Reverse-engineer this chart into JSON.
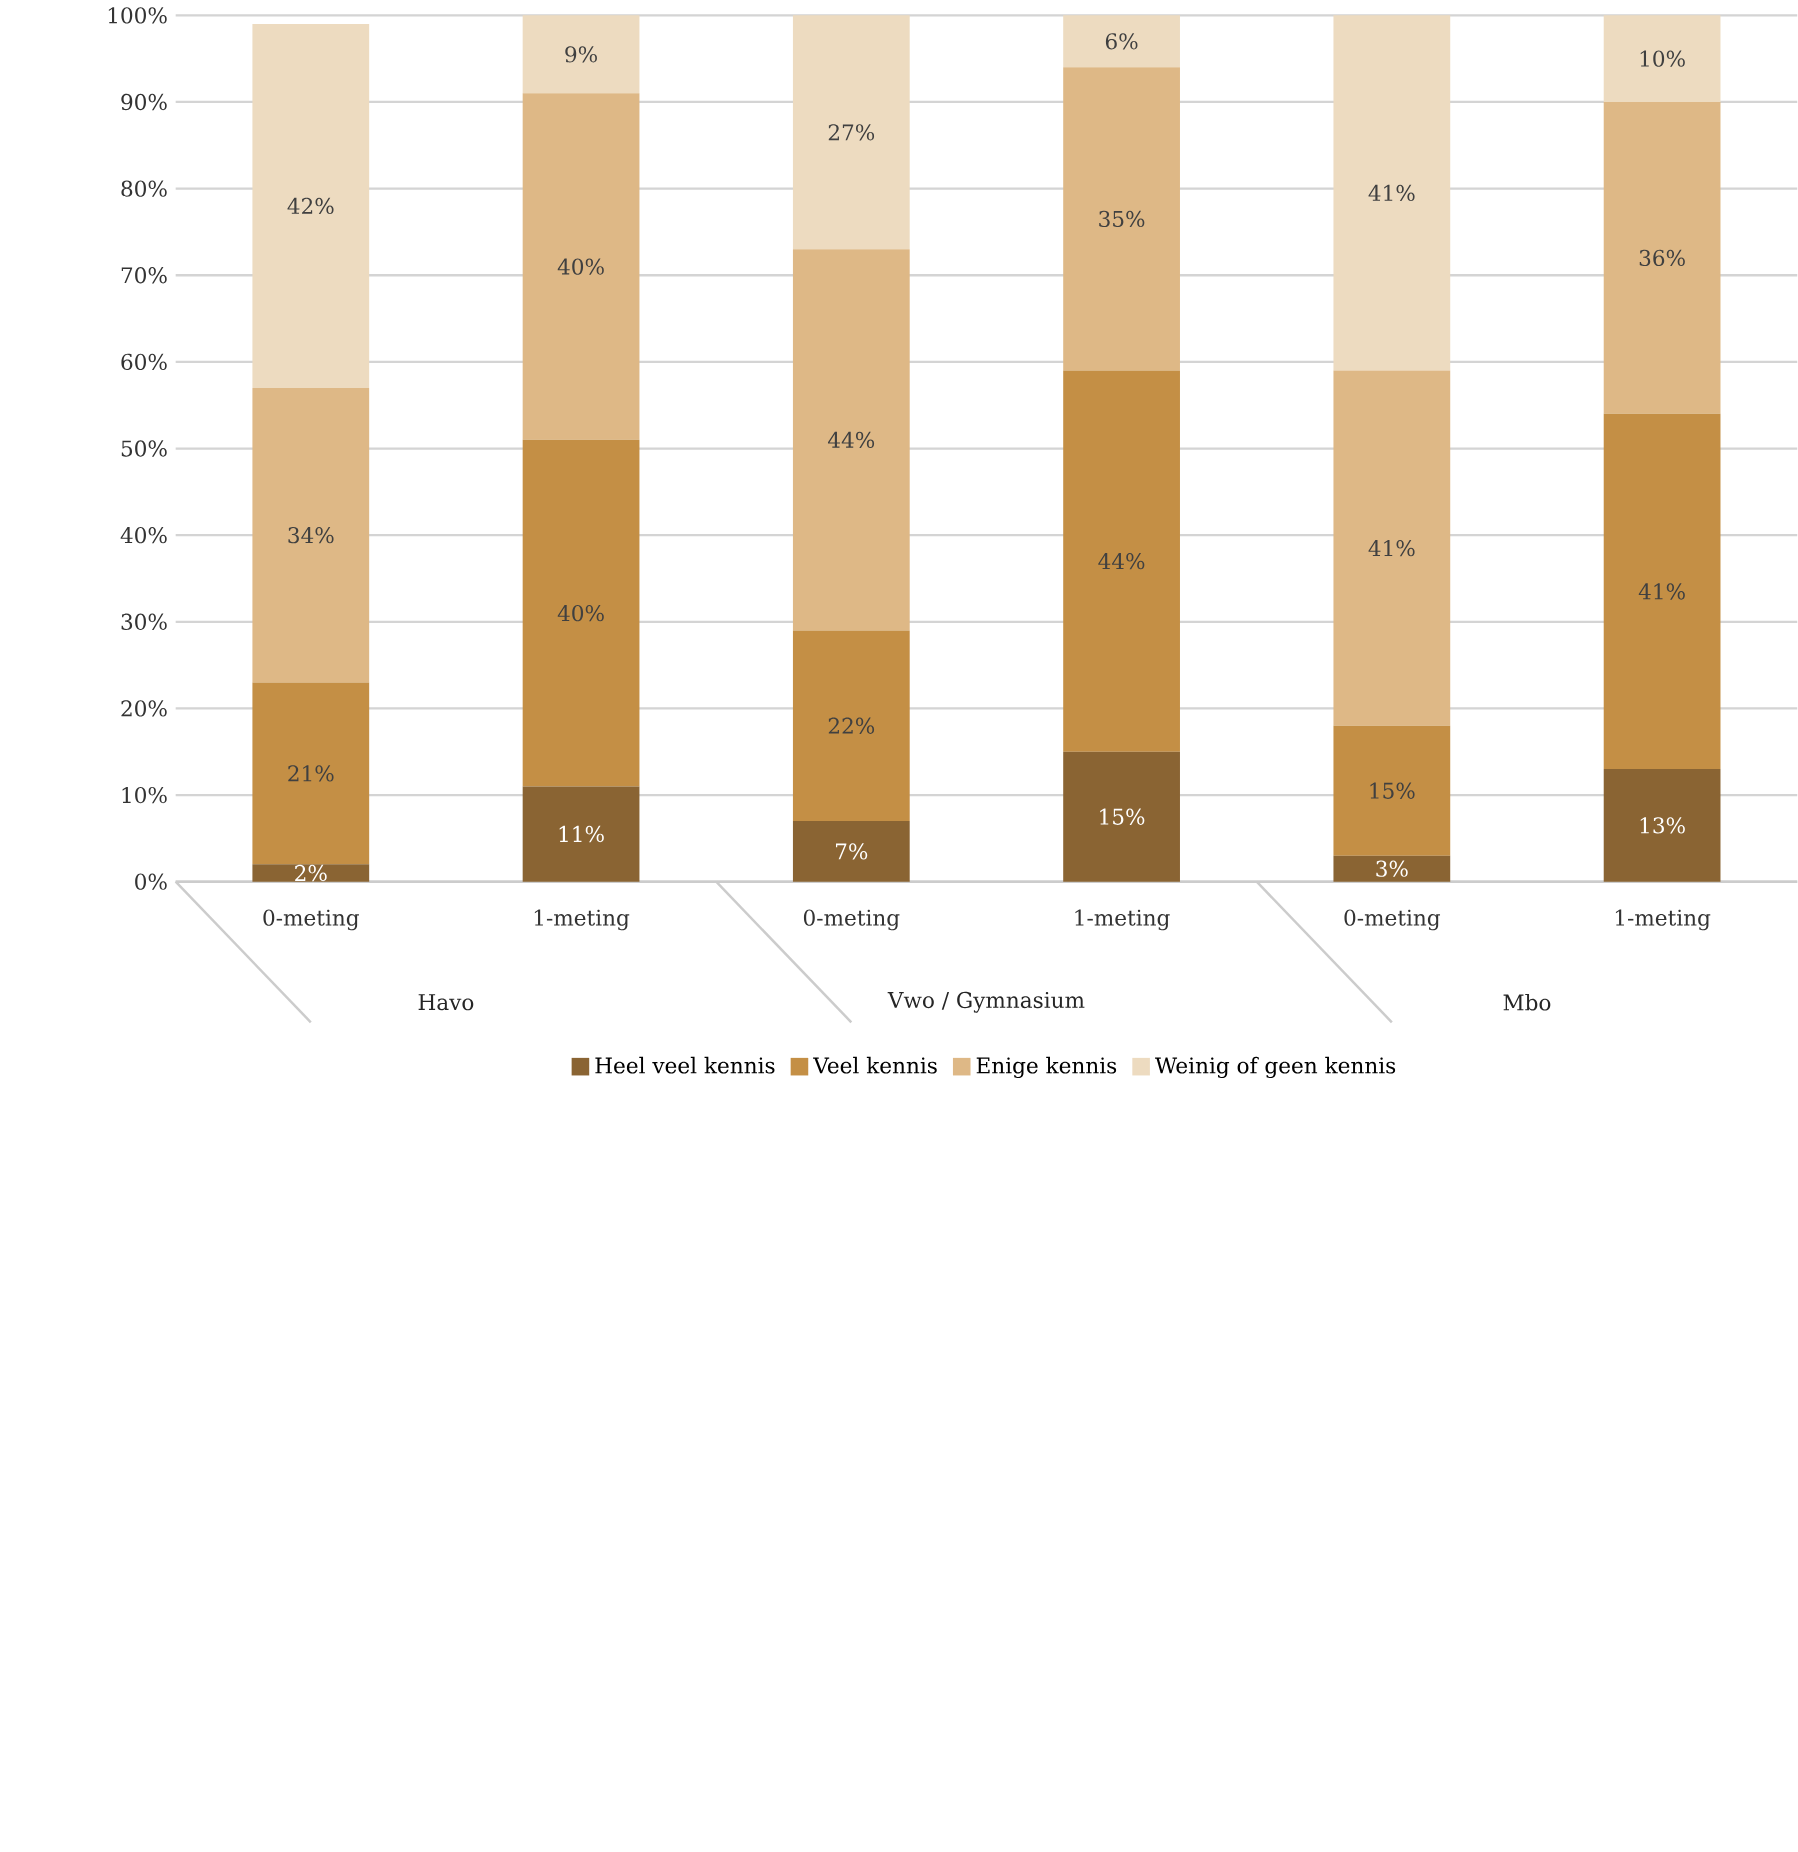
{
  "chart_data": {
    "type": "bar",
    "stacked": true,
    "categories": [
      "0-meting",
      "1-meting",
      "0-meting",
      "1-meting",
      "0-meting",
      "1-meting"
    ],
    "series": [
      {
        "name": "Heel veel kennis",
        "color": "#8a6433",
        "values": [
          2,
          11,
          7,
          15,
          3,
          13
        ],
        "value_labels": [
          "2%",
          "11%",
          "7%",
          "15%",
          "3%",
          "13%"
        ]
      },
      {
        "name": "Veel kennis",
        "color": "#c48f45",
        "values": [
          21,
          40,
          22,
          44,
          15,
          41
        ],
        "value_labels": [
          "21%",
          "40%",
          "22%",
          "44%",
          "15%",
          "41%"
        ]
      },
      {
        "name": "Enige kennis",
        "color": "#deb886",
        "values": [
          34,
          40,
          44,
          35,
          41,
          36
        ],
        "value_labels": [
          "34%",
          "40%",
          "44%",
          "35%",
          "41%",
          "36%"
        ]
      },
      {
        "name": "Weinig of geen kennis",
        "color": "#eddbc0",
        "values": [
          42,
          9,
          27,
          6,
          41,
          10
        ],
        "value_labels": [
          "42%",
          "9%",
          "27%",
          "6%",
          "41%",
          "10%"
        ]
      }
    ],
    "annotations": [
      "Havo",
      "Vwo / Gymnasium",
      "Mbo"
    ],
    "ylim": [
      0,
      100
    ],
    "yticks": [
      {
        "value": 0,
        "label": "0%"
      },
      {
        "value": 10,
        "label": "10%"
      },
      {
        "value": 20,
        "label": "20%"
      },
      {
        "value": 30,
        "label": "30%"
      },
      {
        "value": 40,
        "label": "40%"
      },
      {
        "value": 50,
        "label": "50%"
      },
      {
        "value": 60,
        "label": "60%"
      },
      {
        "value": 70,
        "label": "70%"
      },
      {
        "value": 80,
        "label": "80%"
      },
      {
        "value": 90,
        "label": "90%"
      },
      {
        "value": 100,
        "label": "100%"
      }
    ],
    "grid": "y",
    "legend": "bottom"
  }
}
